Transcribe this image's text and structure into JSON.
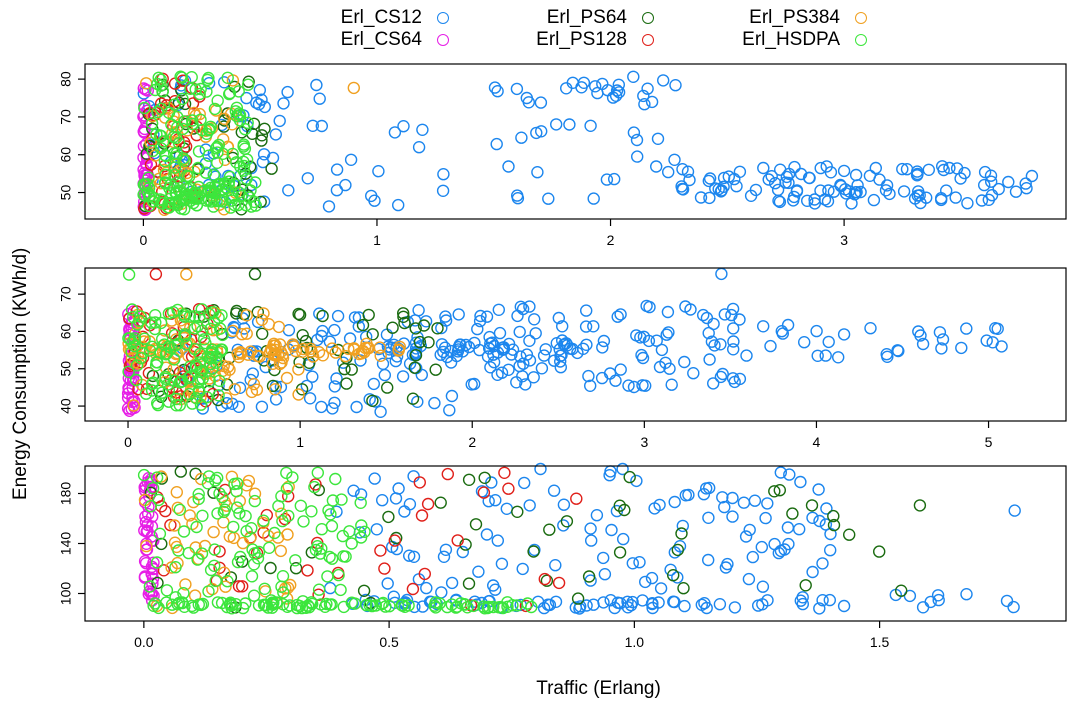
{
  "chart_data": {
    "type": "scatter",
    "xlabel": "Traffic (Erlang)",
    "ylabel": "Energy Consumption (KWh/d)",
    "legend": {
      "placement": "top",
      "entries": [
        {
          "name": "Erl_CS12",
          "color": "#1c86ee"
        },
        {
          "name": "Erl_CS64",
          "color": "#e61ee6"
        },
        {
          "name": "Erl_PS64",
          "color": "#1a6b10"
        },
        {
          "name": "Erl_PS128",
          "color": "#e0201a"
        },
        {
          "name": "Erl_PS384",
          "color": "#f0a020"
        },
        {
          "name": "Erl_HSDPA",
          "color": "#3ce63c"
        }
      ]
    },
    "panels": [
      {
        "xlim": [
          -0.25,
          3.95
        ],
        "ylim": [
          43,
          84
        ],
        "xticks": [
          0,
          1,
          2,
          3
        ],
        "yticks": [
          50,
          60,
          70,
          80
        ],
        "clusters": [
          {
            "series": "Erl_CS12",
            "x": [
              0.0,
              0.8
            ],
            "y": [
              46,
              80
            ],
            "n": 60,
            "seed": 11
          },
          {
            "series": "Erl_CS12",
            "x": [
              0.8,
              1.5
            ],
            "y": [
              46,
              70
            ],
            "n": 14,
            "seed": 12
          },
          {
            "series": "Erl_CS12",
            "x": [
              1.5,
              2.3
            ],
            "y": [
              48,
              80
            ],
            "n": 40,
            "seed": 13
          },
          {
            "series": "Erl_CS12",
            "x": [
              2.3,
              3.85
            ],
            "y": [
              47,
              57
            ],
            "n": 110,
            "seed": 14
          },
          {
            "series": "Erl_CS12",
            "x": [
              2.0,
              2.3
            ],
            "y": [
              75,
              81
            ],
            "n": 8,
            "seed": 15
          },
          {
            "series": "Erl_CS64",
            "x": [
              0.0,
              0.02
            ],
            "y": [
              45,
              82
            ],
            "n": 40,
            "seed": 16
          },
          {
            "series": "Erl_PS64",
            "x": [
              0.0,
              0.55
            ],
            "y": [
              45,
              80
            ],
            "n": 40,
            "seed": 17
          },
          {
            "series": "Erl_PS128",
            "x": [
              0.0,
              0.25
            ],
            "y": [
              45,
              81
            ],
            "n": 40,
            "seed": 18
          },
          {
            "series": "Erl_PS384",
            "x": [
              0.0,
              0.4
            ],
            "y": [
              45,
              81
            ],
            "n": 50,
            "seed": 19
          },
          {
            "series": "Erl_PS384",
            "x": [
              0.9,
              0.98
            ],
            "y": [
              77,
              78
            ],
            "n": 1,
            "seed": 20
          },
          {
            "series": "Erl_HSDPA",
            "x": [
              0.0,
              0.45
            ],
            "y": [
              45,
              81
            ],
            "n": 120,
            "seed": 21
          },
          {
            "series": "Erl_HSDPA",
            "x": [
              0.0,
              0.5
            ],
            "y": [
              46,
              53
            ],
            "n": 80,
            "seed": 22
          }
        ]
      },
      {
        "xlim": [
          -0.25,
          5.45
        ],
        "ylim": [
          36,
          77
        ],
        "xticks": [
          0,
          1,
          2,
          3,
          4,
          5
        ],
        "yticks": [
          40,
          50,
          60,
          70
        ],
        "clusters": [
          {
            "series": "Erl_CS12",
            "x": [
              0.3,
              1.9
            ],
            "y": [
              38,
              66
            ],
            "n": 90,
            "seed": 31
          },
          {
            "series": "Erl_CS12",
            "x": [
              1.9,
              3.6
            ],
            "y": [
              45,
              67
            ],
            "n": 110,
            "seed": 32
          },
          {
            "series": "Erl_CS12",
            "x": [
              3.6,
              5.2
            ],
            "y": [
              53,
              62
            ],
            "n": 30,
            "seed": 33
          },
          {
            "series": "Erl_CS12",
            "x": [
              1.5,
              2.6
            ],
            "y": [
              53,
              57
            ],
            "n": 50,
            "seed": 34
          },
          {
            "series": "Erl_CS12",
            "x": [
              3.4,
              3.46
            ],
            "y": [
              75,
              76
            ],
            "n": 1,
            "seed": 35
          },
          {
            "series": "Erl_CS64",
            "x": [
              0.0,
              0.04
            ],
            "y": [
              38,
              66
            ],
            "n": 45,
            "seed": 36
          },
          {
            "series": "Erl_PS64",
            "x": [
              0.0,
              1.8
            ],
            "y": [
              40,
              66
            ],
            "n": 60,
            "seed": 37
          },
          {
            "series": "Erl_PS64",
            "x": [
              0.73,
              0.78
            ],
            "y": [
              75,
              76
            ],
            "n": 1,
            "seed": 38
          },
          {
            "series": "Erl_PS128",
            "x": [
              0.0,
              0.5
            ],
            "y": [
              40,
              66
            ],
            "n": 40,
            "seed": 39
          },
          {
            "series": "Erl_PS128",
            "x": [
              0.16,
              0.2
            ],
            "y": [
              75,
              76
            ],
            "n": 1,
            "seed": 40
          },
          {
            "series": "Erl_PS384",
            "x": [
              0.0,
              1.0
            ],
            "y": [
              40,
              66
            ],
            "n": 80,
            "seed": 41
          },
          {
            "series": "Erl_PS384",
            "x": [
              0.3,
              0.34
            ],
            "y": [
              75,
              76
            ],
            "n": 1,
            "seed": 42
          },
          {
            "series": "Erl_PS384",
            "x": [
              0.0,
              1.6
            ],
            "y": [
              53,
              57
            ],
            "n": 60,
            "seed": 43
          },
          {
            "series": "Erl_HSDPA",
            "x": [
              0.0,
              0.55
            ],
            "y": [
              40,
              66
            ],
            "n": 120,
            "seed": 44
          },
          {
            "series": "Erl_HSDPA",
            "x": [
              0.0,
              0.02
            ],
            "y": [
              75,
              76
            ],
            "n": 1,
            "seed": 45
          }
        ]
      },
      {
        "xlim": [
          -0.12,
          1.88
        ],
        "ylim": [
          78,
          202
        ],
        "xticks": [
          0.0,
          0.5,
          1.0,
          1.5
        ],
        "yticks": [
          100,
          140,
          180
        ],
        "clusters": [
          {
            "series": "Erl_CS12",
            "x": [
              0.35,
              1.4
            ],
            "y": [
              90,
              200
            ],
            "n": 120,
            "seed": 51
          },
          {
            "series": "Erl_CS12",
            "x": [
              0.4,
              1.4
            ],
            "y": [
              88,
              95
            ],
            "n": 60,
            "seed": 52
          },
          {
            "series": "Erl_CS12",
            "x": [
              1.4,
              1.8
            ],
            "y": [
              88,
              100
            ],
            "n": 10,
            "seed": 53
          },
          {
            "series": "Erl_CS12",
            "x": [
              1.76,
              1.8
            ],
            "y": [
              166,
              170
            ],
            "n": 1,
            "seed": 54
          },
          {
            "series": "Erl_CS64",
            "x": [
              0.0,
              0.02
            ],
            "y": [
              88,
              198
            ],
            "n": 45,
            "seed": 55
          },
          {
            "series": "Erl_PS64",
            "x": [
              0.0,
              1.6
            ],
            "y": [
              88,
              198
            ],
            "n": 50,
            "seed": 56
          },
          {
            "series": "Erl_PS128",
            "x": [
              0.0,
              0.9
            ],
            "y": [
              88,
              198
            ],
            "n": 40,
            "seed": 57
          },
          {
            "series": "Erl_PS384",
            "x": [
              0.0,
              0.3
            ],
            "y": [
              88,
              198
            ],
            "n": 50,
            "seed": 58
          },
          {
            "series": "Erl_HSDPA",
            "x": [
              0.0,
              0.45
            ],
            "y": [
              88,
              198
            ],
            "n": 110,
            "seed": 59
          },
          {
            "series": "Erl_HSDPA",
            "x": [
              0.0,
              0.8
            ],
            "y": [
              88,
              93
            ],
            "n": 90,
            "seed": 60
          }
        ]
      }
    ]
  }
}
